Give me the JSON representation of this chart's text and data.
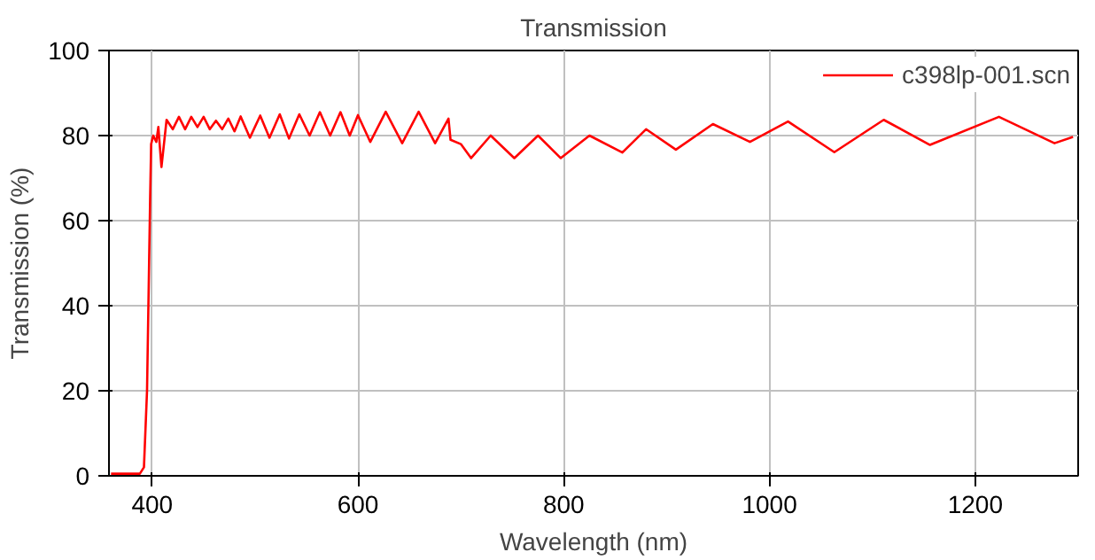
{
  "chart_data": {
    "type": "line",
    "title": "Transmission",
    "xlabel": "Wavelength (nm)",
    "ylabel": "Transmission (%)",
    "xlim": [
      358,
      1300
    ],
    "ylim": [
      0,
      100
    ],
    "xticks": [
      400,
      600,
      800,
      1000,
      1200
    ],
    "yticks": [
      0,
      20,
      40,
      60,
      80,
      100
    ],
    "grid": true,
    "legend": "top right",
    "series": [
      {
        "name": "c398lp-001.scn",
        "color": "#ff0000",
        "x": [
          360,
          388,
          392,
          395,
          397,
          398,
          399,
          401,
          404,
          406,
          409,
          414,
          420,
          426,
          432,
          438,
          444,
          450,
          456,
          462,
          468,
          474,
          480,
          486,
          495,
          505,
          514,
          524,
          533,
          543,
          553,
          563,
          573,
          583,
          592,
          600,
          612,
          627,
          643,
          659,
          675,
          688,
          690,
          700,
          710,
          729,
          752,
          775,
          797,
          825,
          857,
          880,
          909,
          945,
          981,
          1018,
          1063,
          1111,
          1156,
          1223,
          1277,
          1295
        ],
        "values": [
          0.5,
          0.5,
          2,
          20,
          50,
          65,
          78,
          80,
          78.5,
          82,
          72.6,
          83.7,
          81.5,
          84.4,
          81.5,
          84.4,
          82,
          84.4,
          81.5,
          83.5,
          81.5,
          84,
          81,
          84.5,
          79.5,
          84.7,
          79.5,
          85,
          79.3,
          85,
          80,
          85.5,
          80,
          85.5,
          80,
          84.8,
          78.5,
          85.6,
          78.2,
          85.6,
          78.2,
          84,
          79,
          78,
          74.7,
          80,
          74.7,
          80,
          74.7,
          80,
          76,
          81.5,
          76.7,
          82.7,
          78.5,
          83.3,
          76.1,
          83.7,
          77.8,
          84.4,
          78.2,
          79.7
        ]
      }
    ]
  }
}
